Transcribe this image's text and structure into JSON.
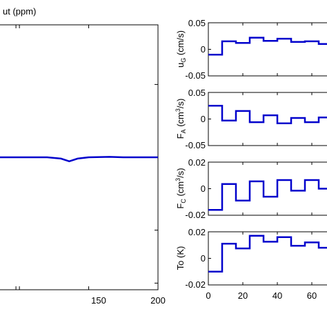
{
  "chart_data": [
    {
      "type": "line",
      "title": "",
      "ylabel": "ut (ppm)",
      "xlabel": "",
      "x_ticks": [
        "150",
        "200"
      ],
      "xlim": [
        85,
        200
      ],
      "ylim": [
        -1,
        1
      ],
      "series": [
        {
          "x": [
            85,
            95,
            110,
            120,
            130,
            136,
            142,
            150,
            165,
            175,
            200
          ],
          "y": [
            0.0,
            0.0,
            0.0,
            0.0,
            -0.01,
            -0.03,
            -0.01,
            0.0,
            0.003,
            0.0,
            0.0
          ]
        }
      ],
      "color": "#0000cc"
    },
    {
      "type": "line",
      "title": "",
      "ylabel": "uG (cm/s)",
      "ylabel_main": "u",
      "ylabel_sub": "G",
      "ylabel_rest": " (cm/s)",
      "y_ticks": [
        "0.05",
        "0",
        "-0.05"
      ],
      "xlim": [
        0,
        72
      ],
      "ylim": [
        -0.05,
        0.05
      ],
      "series": [
        {
          "step": true,
          "x": [
            0,
            8,
            16,
            24,
            32,
            40,
            48,
            56,
            64,
            72
          ],
          "y": [
            -0.01,
            0.015,
            0.012,
            0.022,
            0.016,
            0.02,
            0.014,
            0.015,
            0.01,
            0.01
          ]
        }
      ],
      "color": "#0000cc"
    },
    {
      "type": "line",
      "title": "",
      "ylabel": "FA (cm3/s)",
      "ylabel_main": "F",
      "ylabel_sub": "A",
      "ylabel_rest": " (cm",
      "ylabel_sup": "3",
      "ylabel_end": "/s)",
      "y_ticks": [
        "0.05",
        "0",
        "-0.05"
      ],
      "xlim": [
        0,
        72
      ],
      "ylim": [
        -0.05,
        0.05
      ],
      "series": [
        {
          "step": true,
          "x": [
            0,
            8,
            16,
            24,
            32,
            40,
            48,
            56,
            64,
            72
          ],
          "y": [
            0.025,
            -0.003,
            0.015,
            -0.006,
            0.007,
            -0.008,
            0.002,
            -0.006,
            0.003,
            0.003
          ]
        }
      ],
      "color": "#0000cc"
    },
    {
      "type": "line",
      "title": "",
      "ylabel": "FC (cm3/s)",
      "ylabel_main": "F",
      "ylabel_sub": "C",
      "ylabel_rest": " (cm",
      "ylabel_sup": "3",
      "ylabel_end": "/s)",
      "y_ticks": [
        "0.02",
        "0",
        "-0.02"
      ],
      "xlim": [
        0,
        72
      ],
      "ylim": [
        -0.02,
        0.02
      ],
      "series": [
        {
          "step": true,
          "x": [
            0,
            8,
            16,
            24,
            32,
            40,
            48,
            56,
            64,
            72
          ],
          "y": [
            -0.016,
            0.0035,
            -0.009,
            0.0055,
            -0.006,
            0.0065,
            -0.0015,
            0.0065,
            0.0,
            0.0
          ]
        }
      ],
      "color": "#0000cc"
    },
    {
      "type": "line",
      "title": "",
      "ylabel": "To (K)",
      "ylabel_main": "To (K)",
      "y_ticks": [
        "0.02",
        "0",
        "-0.02"
      ],
      "x_ticks": [
        "0",
        "20",
        "40",
        "60"
      ],
      "xlim": [
        0,
        72
      ],
      "ylim": [
        -0.02,
        0.02
      ],
      "series": [
        {
          "step": true,
          "x": [
            0,
            8,
            16,
            24,
            32,
            40,
            48,
            56,
            64,
            72
          ],
          "y": [
            -0.01,
            0.011,
            0.0075,
            0.017,
            0.0125,
            0.016,
            0.0095,
            0.012,
            0.008,
            0.008
          ]
        }
      ],
      "color": "#0000cc"
    }
  ]
}
